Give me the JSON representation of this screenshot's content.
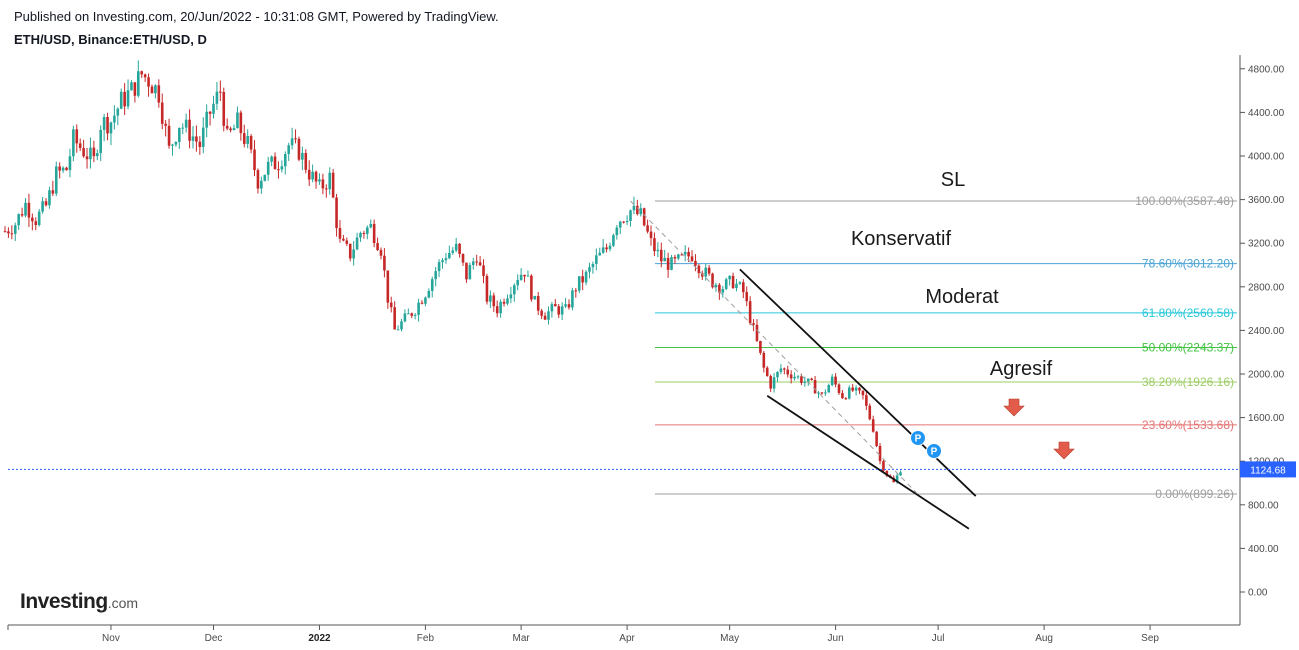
{
  "header": {
    "published": "Published on Investing.com, 20/Jun/2022 - 10:31:08 GMT, Powered by TradingView.",
    "symbol": "ETH/USD, Binance:ETH/USD, D"
  },
  "logo": {
    "main": "Investing",
    "suffix": ".com"
  },
  "colors": {
    "up": "#26a69a",
    "down": "#c62828",
    "price_line": "#2962ff",
    "price_badge": "#2962ff",
    "arrow": "#e35b4a",
    "marker": "#2196f3"
  },
  "icons": {
    "marker": "p-circle-icon",
    "arrow": "arrow-down-icon"
  },
  "chart_data": {
    "type": "candlestick",
    "y_axis": {
      "min": -300,
      "max": 5000,
      "ticks": [
        "4800.00",
        "4400.00",
        "4000.00",
        "3600.00",
        "3200.00",
        "2800.00",
        "2400.00",
        "2000.00",
        "1600.00",
        "1200.00",
        "800.00",
        "400.00",
        "0.00"
      ]
    },
    "x_axis": {
      "labels": [
        "Nov",
        "Dec",
        "2022",
        "Feb",
        "Mar",
        "Apr",
        "May",
        "Jun",
        "Jul",
        "Aug",
        "Sep"
      ],
      "bold": [
        "2022"
      ],
      "start": "2021-10-01",
      "end": "2022-09-20"
    },
    "current_price": "1124.68",
    "fibonacci": [
      {
        "level": "100.00%(3587.48)",
        "value": 3587.48,
        "color": "#9e9e9e"
      },
      {
        "level": "78.60%(3012.20)",
        "value": 3012.2,
        "color": "#4aa3d6"
      },
      {
        "level": "61.80%(2560.58)",
        "value": 2560.58,
        "color": "#26c6da"
      },
      {
        "level": "50.00%(2243.37)",
        "value": 2243.37,
        "color": "#43c443"
      },
      {
        "level": "38.20%(1926.16)",
        "value": 1926.16,
        "color": "#9ccc65"
      },
      {
        "level": "23.60%(1533.68)",
        "value": 1533.68,
        "color": "#e57373"
      },
      {
        "level": "0.00%(899.26)",
        "value": 899.26,
        "color": "#9e9e9e"
      }
    ],
    "annotations": {
      "sl": "SL",
      "konservatif": "Konservatif",
      "moderat": "Moderat",
      "agresif": "Agresif"
    },
    "markers": [
      "P",
      "P"
    ],
    "channel": {
      "upper": [
        [
          "2022-05-04",
          2960
        ],
        [
          "2022-07-12",
          880
        ]
      ],
      "lower": [
        [
          "2022-05-12",
          1800
        ],
        [
          "2022-07-10",
          580
        ]
      ],
      "diagonal": [
        [
          "2022-04-02",
          3587
        ],
        [
          "2022-06-25",
          900
        ]
      ]
    },
    "closes": [
      [
        "2021-10-01",
        3310
      ],
      [
        "2021-10-04",
        3380
      ],
      [
        "2021-10-07",
        3560
      ],
      [
        "2021-10-10",
        3420
      ],
      [
        "2021-10-13",
        3540
      ],
      [
        "2021-10-16",
        3830
      ],
      [
        "2021-10-19",
        3880
      ],
      [
        "2021-10-21",
        4150
      ],
      [
        "2021-10-24",
        4050
      ],
      [
        "2021-10-27",
        3950
      ],
      [
        "2021-10-29",
        4300
      ],
      [
        "2021-11-01",
        4320
      ],
      [
        "2021-11-04",
        4500
      ],
      [
        "2021-11-07",
        4600
      ],
      [
        "2021-11-10",
        4750
      ],
      [
        "2021-11-12",
        4700
      ],
      [
        "2021-11-15",
        4580
      ],
      [
        "2021-11-18",
        4050
      ],
      [
        "2021-11-21",
        4300
      ],
      [
        "2021-11-24",
        4220
      ],
      [
        "2021-11-27",
        4100
      ],
      [
        "2021-11-30",
        4400
      ],
      [
        "2021-12-03",
        4600
      ],
      [
        "2021-12-05",
        4150
      ],
      [
        "2021-12-08",
        4300
      ],
      [
        "2021-12-11",
        4100
      ],
      [
        "2021-12-14",
        3780
      ],
      [
        "2021-12-17",
        3900
      ],
      [
        "2021-12-20",
        3950
      ],
      [
        "2021-12-23",
        4100
      ],
      [
        "2021-12-26",
        4050
      ],
      [
        "2021-12-29",
        3850
      ],
      [
        "2022-01-01",
        3700
      ],
      [
        "2022-01-04",
        3800
      ],
      [
        "2022-01-07",
        3200
      ],
      [
        "2022-01-10",
        3100
      ],
      [
        "2022-01-13",
        3300
      ],
      [
        "2022-01-16",
        3350
      ],
      [
        "2022-01-19",
        3150
      ],
      [
        "2022-01-21",
        2700
      ],
      [
        "2022-01-23",
        2400
      ],
      [
        "2022-01-26",
        2500
      ],
      [
        "2022-01-29",
        2600
      ],
      [
        "2022-02-01",
        2750
      ],
      [
        "2022-02-04",
        2950
      ],
      [
        "2022-02-07",
        3100
      ],
      [
        "2022-02-10",
        3150
      ],
      [
        "2022-02-13",
        2900
      ],
      [
        "2022-02-16",
        3100
      ],
      [
        "2022-02-19",
        2700
      ],
      [
        "2022-02-22",
        2600
      ],
      [
        "2022-02-25",
        2750
      ],
      [
        "2022-02-28",
        2900
      ],
      [
        "2022-03-02",
        2950
      ],
      [
        "2022-03-05",
        2650
      ],
      [
        "2022-03-08",
        2550
      ],
      [
        "2022-03-11",
        2600
      ],
      [
        "2022-03-14",
        2580
      ],
      [
        "2022-03-17",
        2800
      ],
      [
        "2022-03-20",
        2900
      ],
      [
        "2022-03-23",
        3050
      ],
      [
        "2022-03-26",
        3150
      ],
      [
        "2022-03-29",
        3400
      ],
      [
        "2022-04-02",
        3500
      ],
      [
        "2022-04-05",
        3450
      ],
      [
        "2022-04-08",
        3200
      ],
      [
        "2022-04-11",
        3050
      ],
      [
        "2022-04-14",
        3000
      ],
      [
        "2022-04-17",
        3050
      ],
      [
        "2022-04-20",
        3100
      ],
      [
        "2022-04-23",
        2950
      ],
      [
        "2022-04-26",
        2850
      ],
      [
        "2022-04-29",
        2800
      ],
      [
        "2022-05-02",
        2850
      ],
      [
        "2022-05-05",
        2750
      ],
      [
        "2022-05-08",
        2400
      ],
      [
        "2022-05-11",
        2050
      ],
      [
        "2022-05-13",
        1900
      ],
      [
        "2022-05-16",
        2050
      ],
      [
        "2022-05-19",
        2000
      ],
      [
        "2022-05-22",
        1950
      ],
      [
        "2022-05-25",
        1900
      ],
      [
        "2022-05-28",
        1800
      ],
      [
        "2022-05-31",
        1950
      ],
      [
        "2022-06-03",
        1800
      ],
      [
        "2022-06-06",
        1850
      ],
      [
        "2022-06-09",
        1790
      ],
      [
        "2022-06-12",
        1500
      ],
      [
        "2022-06-14",
        1200
      ],
      [
        "2022-06-16",
        1080
      ],
      [
        "2022-06-18",
        1000
      ],
      [
        "2022-06-20",
        1124.68
      ]
    ]
  }
}
